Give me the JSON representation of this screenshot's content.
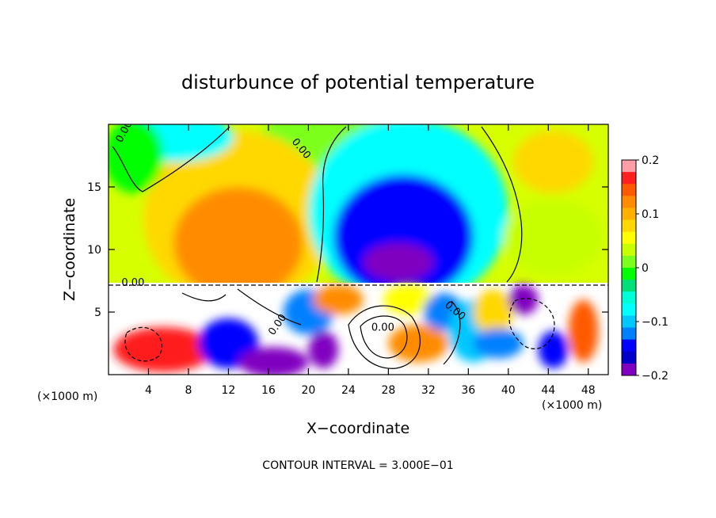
{
  "chart_data": {
    "type": "heatmap",
    "title": "disturbunce of potential temperature",
    "xlabel": "X−coordinate",
    "ylabel": "Z−coordinate",
    "x_unit_left": "(×1000 m)",
    "x_unit_right": "(×1000 m)",
    "footer": "CONTOUR INTERVAL = 3.000E−01",
    "xlim": [
      0,
      50
    ],
    "ylim": [
      0,
      20
    ],
    "x_ticks": [
      4,
      8,
      12,
      16,
      20,
      24,
      28,
      32,
      36,
      40,
      44,
      48
    ],
    "x_tick_labels": [
      "4",
      "8",
      "12",
      "16",
      "20",
      "24",
      "28",
      "32",
      "36",
      "40",
      "44",
      "48"
    ],
    "y_ticks": [
      5,
      10,
      15
    ],
    "y_tick_labels": [
      "5",
      "10",
      "15"
    ],
    "colorbar": {
      "range": [
        -0.2,
        0.2
      ],
      "ticks": [
        0.2,
        0.1,
        0,
        -0.1,
        -0.2
      ],
      "tick_labels": [
        "0.2",
        "0.1",
        "0",
        "−0.1",
        "−0.2"
      ],
      "colors": [
        "#ff9ea6",
        "#ff1f1f",
        "#ff5a00",
        "#ff8c00",
        "#ffb000",
        "#ffd800",
        "#ffff00",
        "#c8ff00",
        "#7dff1e",
        "#00ff00",
        "#00e07a",
        "#00ffd8",
        "#00ffff",
        "#00c8ff",
        "#0080ff",
        "#0000ff",
        "#0000c8",
        "#8000c0"
      ]
    },
    "contour_labels": [
      {
        "text": "0.00",
        "x": 1.3,
        "z": 18.5,
        "angle": 62
      },
      {
        "text": "0.00",
        "x": 18.3,
        "z": 18.6,
        "angle": -50
      },
      {
        "text": "0.00",
        "x": 1.3,
        "z": 7.1,
        "angle": 0
      },
      {
        "text": "0.00",
        "x": 16.5,
        "z": 3.1,
        "angle": 55
      },
      {
        "text": "0.00",
        "x": 26.3,
        "z": 3.5,
        "angle": 0
      },
      {
        "text": "0.00",
        "x": 33.6,
        "z": 5.5,
        "angle": -40
      }
    ],
    "regions": [
      {
        "kind": "ellipse",
        "cx": 24.0,
        "cz": 16.5,
        "rx": 10,
        "rz": 6,
        "value": 0.02
      },
      {
        "kind": "ellipse",
        "cx": 13.0,
        "cz": 12.5,
        "rx": 9.5,
        "rz": 7,
        "value": 0.07
      },
      {
        "kind": "ellipse",
        "cx": 13.0,
        "cz": 10.5,
        "rx": 6.5,
        "rz": 4.5,
        "value": 0.12
      },
      {
        "kind": "ellipse",
        "cx": 30.0,
        "cz": 13.0,
        "rx": 10,
        "rz": 7.5,
        "value": -0.08
      },
      {
        "kind": "ellipse",
        "cx": 29.5,
        "cz": 11.0,
        "rx": 7,
        "rz": 5,
        "value": -0.14
      },
      {
        "kind": "ellipse",
        "cx": 29.0,
        "cz": 9.0,
        "rx": 3.5,
        "rz": 1.5,
        "value": -0.18
      },
      {
        "kind": "ellipse",
        "cx": 6.5,
        "cz": 19.0,
        "rx": 6,
        "rz": 2,
        "value": -0.08
      },
      {
        "kind": "ellipse",
        "cx": 44.5,
        "cz": 17.0,
        "rx": 4,
        "rz": 2.5,
        "value": 0.08
      },
      {
        "kind": "ellipse",
        "cx": 2.5,
        "cz": 17.5,
        "rx": 3,
        "rz": 3,
        "value": 0.0
      },
      {
        "kind": "ellipse",
        "cx": 44.5,
        "cz": 11.0,
        "rx": 5,
        "rz": 3,
        "value": 0.04
      },
      {
        "kind": "ellipse",
        "cx": 5.5,
        "cz": 2.0,
        "rx": 5,
        "rz": 1.8,
        "value": 0.17
      },
      {
        "kind": "ellipse",
        "cx": 12.0,
        "cz": 2.5,
        "rx": 3,
        "rz": 2,
        "value": -0.14
      },
      {
        "kind": "ellipse",
        "cx": 16.5,
        "cz": 1.0,
        "rx": 3.5,
        "rz": 1.2,
        "value": -0.2
      },
      {
        "kind": "ellipse",
        "cx": 20.0,
        "cz": 5.0,
        "rx": 2.5,
        "rz": 1.8,
        "value": -0.12
      },
      {
        "kind": "ellipse",
        "cx": 21.5,
        "cz": 2.0,
        "rx": 1.5,
        "rz": 1.5,
        "value": -0.18
      },
      {
        "kind": "ellipse",
        "cx": 23.0,
        "cz": 6.0,
        "rx": 2.5,
        "rz": 1.2,
        "value": 0.12
      },
      {
        "kind": "ellipse",
        "cx": 30.0,
        "cz": 6.0,
        "rx": 2.5,
        "rz": 1.2,
        "value": 0.06
      },
      {
        "kind": "ellipse",
        "cx": 31.0,
        "cz": 2.5,
        "rx": 3,
        "rz": 1.5,
        "value": 0.12
      },
      {
        "kind": "ellipse",
        "cx": 33.5,
        "cz": 5.0,
        "rx": 2,
        "rz": 1.5,
        "value": -0.12
      },
      {
        "kind": "ellipse",
        "cx": 36.5,
        "cz": 3.5,
        "rx": 2.5,
        "rz": 2.5,
        "value": -0.1
      },
      {
        "kind": "ellipse",
        "cx": 38.5,
        "cz": 5.0,
        "rx": 2,
        "rz": 1.8,
        "value": 0.08
      },
      {
        "kind": "ellipse",
        "cx": 39.0,
        "cz": 2.5,
        "rx": 2.5,
        "rz": 1.2,
        "value": -0.12
      },
      {
        "kind": "ellipse",
        "cx": 47.5,
        "cz": 3.5,
        "rx": 1.5,
        "rz": 2.5,
        "value": 0.15
      },
      {
        "kind": "ellipse",
        "cx": 44.5,
        "cz": 2.0,
        "rx": 1.5,
        "rz": 1.5,
        "value": -0.14
      },
      {
        "kind": "ellipse",
        "cx": 41.5,
        "cz": 6.0,
        "rx": 1.5,
        "rz": 1.2,
        "value": -0.18
      }
    ]
  }
}
